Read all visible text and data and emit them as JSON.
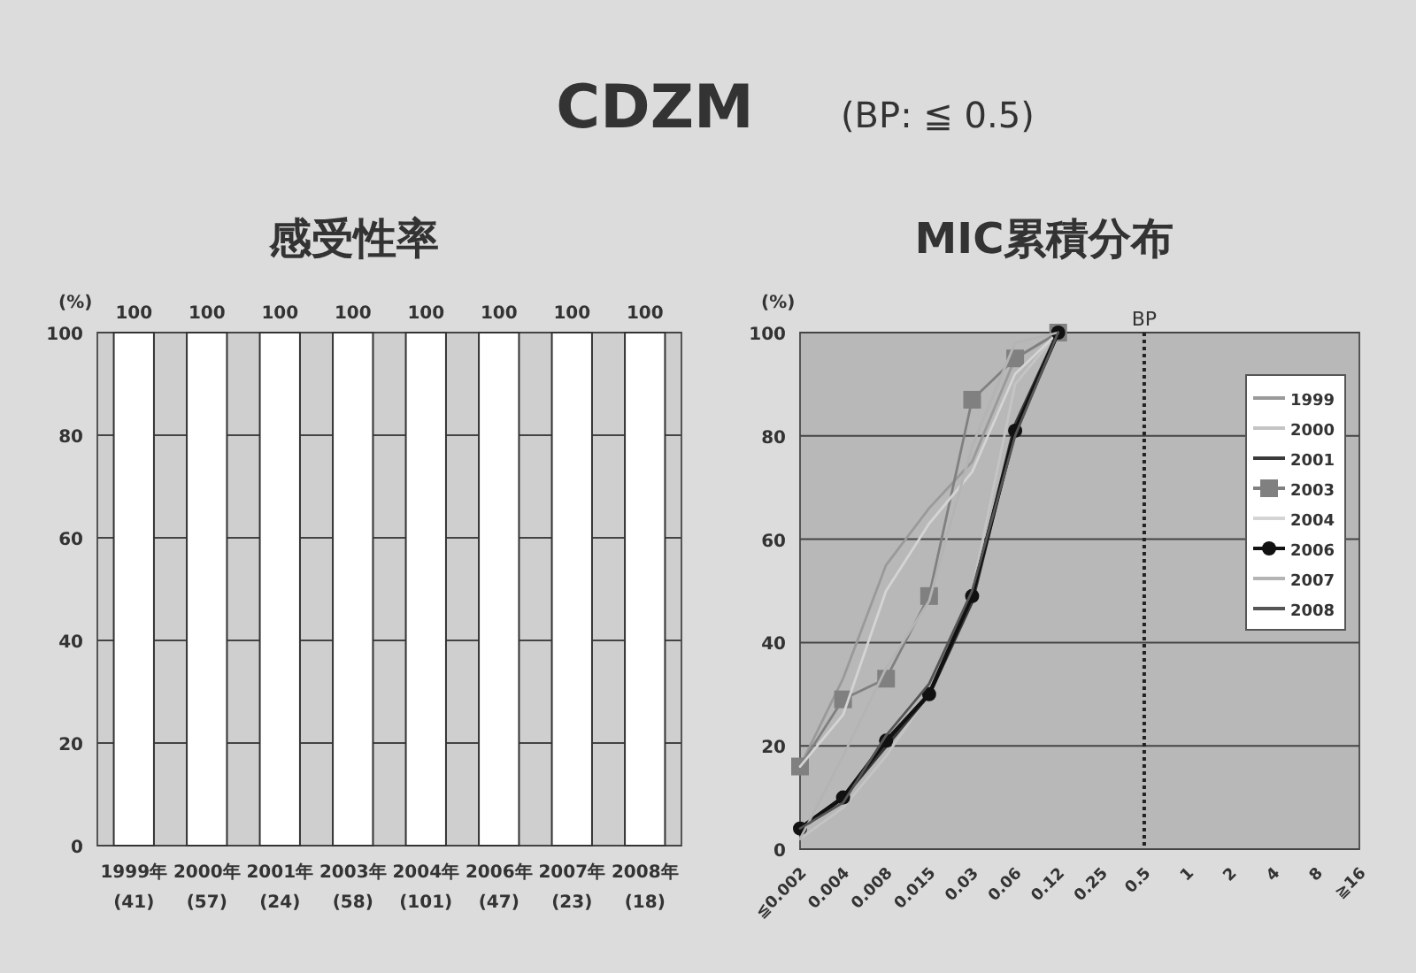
{
  "chart_data": [
    {
      "type": "bar",
      "title": "感受性率",
      "annotations": [
        "CDZM",
        "(BP: ≦ 0.5)"
      ],
      "ylabel": "(%)",
      "categories": [
        "1999年\n(41)",
        "2000年\n(57)",
        "2001年\n(24)",
        "2003年\n(58)",
        "2004年\n(101)",
        "2006年\n(47)",
        "2007年\n(23)",
        "2008年\n(18)"
      ],
      "values": [
        100,
        100,
        100,
        100,
        100,
        100,
        100,
        100
      ],
      "color": "#ffffff",
      "data_labels": true,
      "ylim": [
        0,
        100
      ],
      "yticks": [
        0,
        20,
        40,
        60,
        80,
        100
      ],
      "grid": "y"
    },
    {
      "type": "line",
      "title": "MIC累積分布",
      "ylabel": "(%)",
      "categories": [
        "≦0.002",
        "0.004",
        "0.008",
        "0.015",
        "0.03",
        "0.06",
        "0.12",
        "0.25",
        "0.5",
        "1",
        "2",
        "4",
        "8",
        "≧16"
      ],
      "series": [
        {
          "name": "1999",
          "color": "#9a9a9a",
          "values": [
            16,
            33,
            55,
            66,
            75,
            95,
            100,
            null,
            null,
            null,
            null,
            null,
            null,
            null
          ]
        },
        {
          "name": "2000",
          "color": "#c4c4c4",
          "values": [
            2,
            8,
            18,
            30,
            50,
            90,
            100,
            null,
            null,
            null,
            null,
            null,
            null,
            null
          ]
        },
        {
          "name": "2001",
          "color": "#3a3a3a",
          "values": [
            4,
            10,
            20,
            30,
            48,
            82,
            100,
            null,
            null,
            null,
            null,
            null,
            null,
            null
          ]
        },
        {
          "name": "2003",
          "color": "#808080",
          "marker": "square",
          "values": [
            16,
            29,
            33,
            49,
            87,
            95,
            100,
            null,
            null,
            null,
            null,
            null,
            null,
            null
          ]
        },
        {
          "name": "2004",
          "color": "#d4d4d4",
          "values": [
            16,
            26,
            50,
            63,
            73,
            92,
            100,
            null,
            null,
            null,
            null,
            null,
            null,
            null
          ]
        },
        {
          "name": "2006",
          "color": "#111111",
          "marker": "circle",
          "values": [
            4,
            10,
            21,
            30,
            49,
            81,
            100,
            null,
            null,
            null,
            null,
            null,
            null,
            null
          ]
        },
        {
          "name": "2007",
          "color": "#b4b4b4",
          "values": [
            2,
            18,
            35,
            48,
            78,
            98,
            100,
            null,
            null,
            null,
            null,
            null,
            null,
            null
          ]
        },
        {
          "name": "2008",
          "color": "#555555",
          "values": [
            4,
            9,
            22,
            32,
            50,
            80,
            100,
            null,
            null,
            null,
            null,
            null,
            null,
            null
          ]
        }
      ],
      "ref_lines": [
        {
          "axis": "x",
          "value": "0.5",
          "label": "BP",
          "color": "#222222",
          "line_style": "dotted"
        }
      ],
      "ylim": [
        0,
        100
      ],
      "yticks": [
        0,
        20,
        40,
        60,
        80,
        100
      ],
      "grid": "y",
      "legend": "top right"
    }
  ]
}
